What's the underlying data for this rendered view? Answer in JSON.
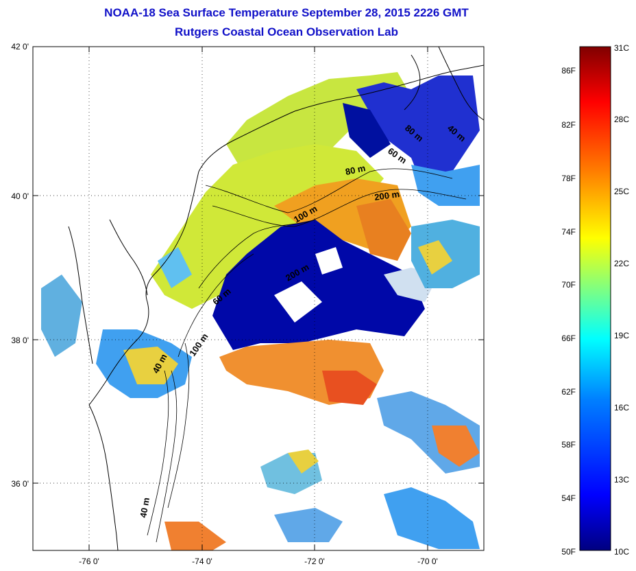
{
  "title": "NOAA-18 Sea Surface Temperature September 28, 2015 2226 GMT",
  "subtitle": "Rutgers Coastal Ocean Observation Lab",
  "map": {
    "lat_labels": [
      "42 0'",
      "40 0'",
      "38 0'",
      "36 0'"
    ],
    "lon_labels": [
      "-76 0'",
      "-74 0'",
      "-72 0'",
      "-70 0'"
    ],
    "lat_range": [
      35,
      42
    ],
    "lon_range": [
      -77,
      -69
    ],
    "grid": "dotted",
    "depth_contours": [
      "40 m",
      "60 m",
      "80 m",
      "100 m",
      "200 m",
      "60 m",
      "80 m",
      "100 m",
      "200 m",
      "40 m",
      "40 m"
    ]
  },
  "colorbar": {
    "f_labels": [
      "86F",
      "82F",
      "78F",
      "74F",
      "70F",
      "66F",
      "62F",
      "58F",
      "54F",
      "50F"
    ],
    "c_labels": [
      "31C",
      "28C",
      "25C",
      "22C",
      "19C",
      "16C",
      "13C",
      "10C"
    ],
    "colors": [
      "#800000",
      "#ff0000",
      "#ff8000",
      "#ffff00",
      "#80ff80",
      "#00ffff",
      "#0080ff",
      "#0000ff",
      "#000080"
    ]
  }
}
